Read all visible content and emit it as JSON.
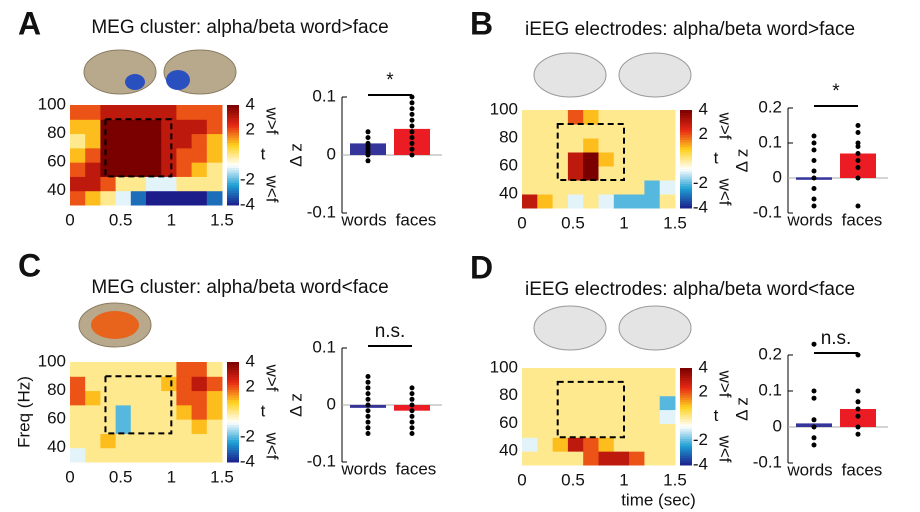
{
  "colormap": [
    "#1c1c8a",
    "#1e9fd4",
    "#ffffff",
    "#ffd21e",
    "#e62814",
    "#7a0000"
  ],
  "chart_data": [
    {
      "type": "heatmap",
      "panel": "A",
      "title": "MEG cluster: alpha/beta word>face",
      "xlim": [
        0,
        1.5
      ],
      "xticks": [
        0,
        0.5,
        1,
        1.5
      ],
      "ylim": [
        30,
        100
      ],
      "yticks": [
        40,
        60,
        80,
        100
      ],
      "window": {
        "x": [
          0.35,
          1
        ],
        "y": [
          50,
          90
        ]
      },
      "values": [
        [
          2,
          1,
          0,
          -1,
          -3,
          -4,
          -4,
          -4,
          -4,
          -3
        ],
        [
          3,
          3,
          2,
          0,
          0,
          -1,
          -1,
          0,
          0,
          0
        ],
        [
          2,
          3,
          4,
          4,
          4,
          4,
          3,
          2,
          1,
          0
        ],
        [
          1,
          2,
          4,
          4,
          4,
          4,
          3,
          2,
          2,
          1
        ],
        [
          0,
          1,
          4,
          4,
          4,
          4,
          3,
          3,
          2,
          1
        ],
        [
          1,
          1,
          4,
          4,
          4,
          4,
          3,
          3,
          3,
          2
        ],
        [
          2,
          2,
          3,
          3,
          3,
          3,
          3,
          2,
          2,
          2
        ]
      ],
      "colorbar": {
        "lim": [
          -4,
          4
        ],
        "ticks": [
          4,
          2,
          -2,
          -4
        ],
        "label": "t",
        "top_label": "w>f",
        "bottom_label": "w<f"
      }
    },
    {
      "type": "bar",
      "ylabel": "Δ z",
      "categories": [
        "words",
        "faces"
      ],
      "values": [
        0.02,
        0.045
      ],
      "colors": [
        "#34349a",
        "#ec1c24"
      ],
      "ylim": [
        -0.1,
        0.1
      ],
      "yticks": [
        0.1,
        0,
        -0.1
      ],
      "annotation": "*",
      "points": [
        [
          0.04,
          0.03,
          0.02,
          0.015,
          0.01,
          0.005,
          0,
          -0.01
        ],
        [
          0.1,
          0.09,
          0.08,
          0.07,
          0.06,
          0.05,
          0.04,
          0.03,
          0.02,
          0.01,
          0
        ]
      ]
    },
    {
      "type": "heatmap",
      "panel": "B",
      "title": "iEEG electrodes: alpha/beta word>face",
      "xlim": [
        0,
        1.5
      ],
      "xticks": [
        0,
        0.5,
        1,
        1.5
      ],
      "ylim": [
        30,
        100
      ],
      "yticks": [
        40,
        60,
        80,
        100
      ],
      "window": {
        "x": [
          0.35,
          1
        ],
        "y": [
          50,
          90
        ]
      },
      "values": [
        [
          3,
          1,
          0,
          -1,
          0,
          -1,
          -2,
          -2,
          -2,
          0
        ],
        [
          0,
          0,
          0,
          0,
          0,
          0,
          0,
          0,
          -2,
          -1
        ],
        [
          0,
          0,
          0,
          3,
          4,
          0,
          0,
          0,
          0,
          0
        ],
        [
          0,
          0,
          0,
          3,
          4,
          1,
          0,
          0,
          0,
          0
        ],
        [
          0,
          0,
          0,
          0,
          1,
          0,
          0,
          0,
          0,
          0
        ],
        [
          0,
          0,
          0,
          0,
          0,
          0,
          0,
          0,
          0,
          0
        ],
        [
          0,
          0,
          0,
          2,
          1,
          0,
          0,
          0,
          0,
          0
        ]
      ],
      "colorbar": {
        "lim": [
          -4,
          4
        ],
        "ticks": [
          4,
          2,
          -2,
          -4
        ],
        "label": "t",
        "top_label": "w>f",
        "bottom_label": "w<f"
      }
    },
    {
      "type": "bar",
      "ylabel": "Δ z",
      "categories": [
        "words",
        "faces"
      ],
      "values": [
        0.002,
        0.07
      ],
      "colors": [
        "#34349a",
        "#ec1c24"
      ],
      "ylim": [
        -0.1,
        0.2
      ],
      "yticks": [
        0.2,
        0.1,
        0,
        -0.1
      ],
      "annotation": "*",
      "points": [
        [
          0.12,
          0.1,
          0.08,
          0.05,
          0.02,
          0,
          -0.03,
          -0.06,
          -0.08
        ],
        [
          0.15,
          0.13,
          0.1,
          0.09,
          0.07,
          0.05,
          0.03,
          0,
          -0.08
        ]
      ]
    },
    {
      "type": "heatmap",
      "panel": "C",
      "title": "MEG cluster: alpha/beta word<face",
      "ylabel": "Freq (Hz)",
      "xlim": [
        0,
        1.5
      ],
      "xticks": [
        0,
        0.5,
        1,
        1.5
      ],
      "ylim": [
        30,
        100
      ],
      "yticks": [
        40,
        60,
        80,
        100
      ],
      "window": {
        "x": [
          0.35,
          1
        ],
        "y": [
          50,
          90
        ]
      },
      "values": [
        [
          -1,
          0,
          0,
          0,
          0,
          0,
          0,
          0,
          0,
          0
        ],
        [
          0,
          0,
          1,
          0,
          0,
          0,
          0,
          0,
          0,
          0
        ],
        [
          0,
          0,
          0,
          -2,
          0,
          0,
          0,
          0,
          1,
          0
        ],
        [
          0,
          0,
          0,
          -2,
          0,
          0,
          0,
          1,
          2,
          1
        ],
        [
          2,
          1,
          0,
          0,
          0,
          0,
          0,
          2,
          2,
          1
        ],
        [
          2,
          0,
          0,
          0,
          0,
          0,
          1,
          2,
          3,
          2
        ],
        [
          0,
          0,
          0,
          0,
          0,
          0,
          0,
          2,
          2,
          0
        ]
      ],
      "colorbar": {
        "lim": [
          -4,
          4
        ],
        "ticks": [
          4,
          2,
          -2,
          -4
        ],
        "label": "t",
        "top_label": "w>f",
        "bottom_label": "w<f"
      }
    },
    {
      "type": "bar",
      "ylabel": "Δ z",
      "categories": [
        "words",
        "faces"
      ],
      "values": [
        -0.005,
        -0.01
      ],
      "colors": [
        "#34349a",
        "#ec1c24"
      ],
      "ylim": [
        -0.1,
        0.1
      ],
      "yticks": [
        0.1,
        0,
        -0.1
      ],
      "annotation": "n.s.",
      "points": [
        [
          0.05,
          0.04,
          0.03,
          0.02,
          0.01,
          0,
          -0.01,
          -0.02,
          -0.03,
          -0.04,
          -0.05
        ],
        [
          0.03,
          0.02,
          0.01,
          0,
          -0.01,
          -0.02,
          -0.03,
          -0.04,
          -0.05
        ]
      ]
    },
    {
      "type": "heatmap",
      "panel": "D",
      "title": "iEEG electrodes: alpha/beta word<face",
      "xlabel": "time (sec)",
      "xlim": [
        0,
        1.5
      ],
      "xticks": [
        0,
        0.5,
        1,
        1.5
      ],
      "ylim": [
        30,
        100
      ],
      "yticks": [
        40,
        60,
        80,
        100
      ],
      "window": {
        "x": [
          0.35,
          1
        ],
        "y": [
          50,
          90
        ]
      },
      "values": [
        [
          0,
          0,
          0,
          0,
          2,
          3,
          3,
          2,
          0,
          0
        ],
        [
          -1,
          0,
          1,
          3,
          2,
          1,
          0,
          0,
          0,
          0
        ],
        [
          0,
          0,
          0,
          0,
          0,
          0,
          0,
          0,
          0,
          0
        ],
        [
          0,
          0,
          0,
          0,
          0,
          0,
          0,
          0,
          0,
          -1
        ],
        [
          0,
          0,
          0,
          0,
          0,
          0,
          0,
          0,
          0,
          -2
        ],
        [
          0,
          0,
          0,
          0,
          0,
          0,
          0,
          0,
          0,
          0
        ],
        [
          0,
          0,
          0,
          0,
          0,
          0,
          0,
          0,
          0,
          0
        ]
      ],
      "colorbar": {
        "lim": [
          -4,
          4
        ],
        "ticks": [
          4,
          2,
          -2,
          -4
        ],
        "label": "t",
        "top_label": "w>f",
        "bottom_label": "w<f"
      }
    },
    {
      "type": "bar",
      "ylabel": "Δ z",
      "categories": [
        "words",
        "faces"
      ],
      "values": [
        0.01,
        0.05
      ],
      "colors": [
        "#34349a",
        "#ec1c24"
      ],
      "ylim": [
        -0.1,
        0.2
      ],
      "yticks": [
        0.2,
        0.1,
        0,
        -0.1
      ],
      "annotation": "n.s.",
      "points": [
        [
          0.23,
          0.1,
          0.08,
          0.02,
          0,
          -0.03,
          -0.05
        ],
        [
          0.2,
          0.1,
          0.07,
          0.05,
          0.03,
          0,
          -0.02
        ]
      ]
    }
  ]
}
